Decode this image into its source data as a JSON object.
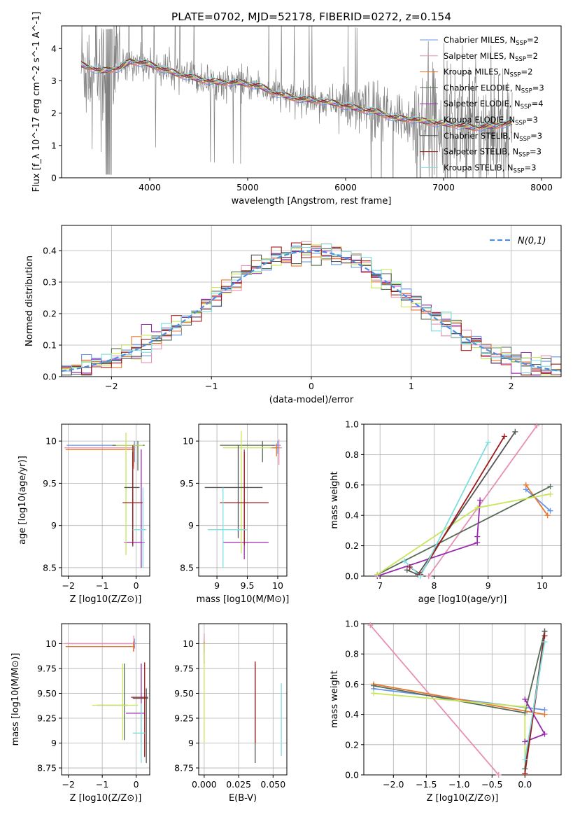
{
  "figure": {
    "title": "PLATE=0702, MJD=52178, FIBERID=0272, z=0.154"
  },
  "models": [
    {
      "name": "Chabrier MILES",
      "nssp": "2",
      "color": "#6495ed"
    },
    {
      "name": "Salpeter MILES",
      "nssp": "2",
      "color": "#e88fb4"
    },
    {
      "name": "Kroupa MILES",
      "nssp": "2",
      "color": "#e8772e"
    },
    {
      "name": "Chabrier ELODIE",
      "nssp": "3",
      "color": "#556b55"
    },
    {
      "name": "Salpeter ELODIE",
      "nssp": "4",
      "color": "#9a2ab0"
    },
    {
      "name": "Kroupa ELODIE",
      "nssp": "3",
      "color": "#c7e55a"
    },
    {
      "name": "Chabrier STELIB",
      "nssp": "3",
      "color": "#555555"
    },
    {
      "name": "Salpeter STELIB",
      "nssp": "3",
      "color": "#a01818"
    },
    {
      "name": "Kroupa STELIB",
      "nssp": "3",
      "color": "#7fdede"
    }
  ],
  "chart_data": [
    {
      "id": "spectrum",
      "type": "line",
      "xlabel": "wavelength [Angstrom, rest frame]",
      "ylabel": "Flux [f_λ 10^-17 erg cm^-2 s^-1 A^-1]",
      "xlim": [
        3100,
        8200
      ],
      "ylim": [
        0,
        4.7
      ],
      "xticks": [
        4000,
        5000,
        6000,
        7000,
        8000
      ],
      "yticks": [
        0,
        1,
        2,
        3,
        4
      ],
      "data_color": "#808080",
      "data_range": [
        3300,
        7700
      ],
      "continuum": {
        "x": [
          3300,
          3500,
          3600,
          3700,
          3800,
          3950,
          4100,
          4300,
          4500,
          4700,
          4900,
          5100,
          5300,
          5500,
          5700,
          5900,
          6100,
          6300,
          6500,
          6700,
          6900,
          7100,
          7300,
          7500,
          7700
        ],
        "y": [
          3.5,
          3.3,
          3.35,
          3.4,
          3.6,
          3.55,
          3.4,
          3.2,
          3.05,
          2.95,
          2.95,
          2.85,
          2.6,
          2.45,
          2.4,
          2.3,
          2.15,
          2.05,
          1.85,
          1.8,
          1.7,
          1.65,
          1.55,
          1.6,
          1.7
        ]
      },
      "grid": false,
      "legend": "top-right"
    },
    {
      "id": "residuals",
      "type": "line",
      "xlabel": "(data-model)/error",
      "ylabel": "Normed distribution",
      "xlim": [
        -2.5,
        2.5
      ],
      "ylim": [
        0,
        0.48
      ],
      "xticks": [
        -2,
        -1,
        0,
        1,
        2
      ],
      "yticks": [
        0.0,
        0.1,
        0.2,
        0.3,
        0.4
      ],
      "bin_width": 0.1,
      "gaussian_label": "N(0,1)",
      "gaussian_color": "#4f8fe0",
      "grid": true,
      "legend": "top-right"
    },
    {
      "id": "age-vs-z",
      "type": "scatter",
      "xlabel": "Z [log10(Z/Z⊙)]",
      "ylabel": "age  [log10(age/yr)]",
      "xlim": [
        -2.2,
        0.4
      ],
      "ylim": [
        8.4,
        10.2
      ],
      "xticks": [
        -2,
        -1,
        0
      ],
      "yticks": [
        8.5,
        9.0,
        9.5,
        10.0
      ],
      "series": [
        {
          "model": 0,
          "x": -0.05,
          "xerr": [
            2.0,
            0.05
          ],
          "y": 9.95,
          "yerr": [
            0.2,
            0.05
          ]
        },
        {
          "model": 1,
          "x": -0.07,
          "xerr": [
            2.05,
            0.05
          ],
          "y": 9.92,
          "yerr": [
            0.25,
            0.05
          ]
        },
        {
          "model": 2,
          "x": -0.08,
          "xerr": [
            2.0,
            0.05
          ],
          "y": 9.9,
          "yerr": [
            0.2,
            0.05
          ]
        },
        {
          "model": 3,
          "x": 0.05,
          "xerr": [
            0.75,
            0.2
          ],
          "y": 9.95,
          "yerr": [
            0.3,
            0.05
          ]
        },
        {
          "model": 4,
          "x": 0.15,
          "xerr": [
            0.5,
            0.1
          ],
          "y": 8.8,
          "yerr": [
            0.3,
            1.1
          ]
        },
        {
          "model": 5,
          "x": -0.3,
          "xerr": [
            0.3,
            0.5
          ],
          "y": 9.95,
          "yerr": [
            1.3,
            0.15
          ]
        },
        {
          "model": 6,
          "x": -0.1,
          "xerr": [
            0.25,
            0.2
          ],
          "y": 9.45,
          "yerr": [
            0.7,
            0.5
          ]
        },
        {
          "model": 7,
          "x": -0.1,
          "xerr": [
            0.3,
            0.3
          ],
          "y": 9.27,
          "yerr": [
            0.5,
            0.6
          ]
        },
        {
          "model": 8,
          "x": 0.2,
          "xerr": [
            0.3,
            0.1
          ],
          "y": 8.95,
          "yerr": [
            0.45,
            0.5
          ]
        }
      ]
    },
    {
      "id": "age-vs-mass",
      "type": "scatter",
      "xlabel": "mass [log10(M/M⊙)]",
      "ylabel": "",
      "xlim": [
        8.7,
        10.15
      ],
      "ylim": [
        8.4,
        10.2
      ],
      "xticks": [
        9.0,
        9.5,
        10.0
      ],
      "yticks": [
        8.5,
        9.0,
        9.5,
        10.0
      ],
      "series": [
        {
          "model": 0,
          "x": 10.0,
          "xerr": [
            0.1,
            0.05
          ],
          "y": 9.95,
          "yerr": [
            0.1,
            0.05
          ]
        },
        {
          "model": 1,
          "x": 10.02,
          "xerr": [
            0.1,
            0.05
          ],
          "y": 9.92,
          "yerr": [
            0.2,
            0.1
          ]
        },
        {
          "model": 2,
          "x": 9.98,
          "xerr": [
            0.1,
            0.05
          ],
          "y": 9.92,
          "yerr": [
            0.1,
            0.05
          ]
        },
        {
          "model": 3,
          "x": 9.75,
          "xerr": [
            0.7,
            0.2
          ],
          "y": 9.95,
          "yerr": [
            0.2,
            0.05
          ]
        },
        {
          "model": 4,
          "x": 9.45,
          "xerr": [
            0.35,
            0.4
          ],
          "y": 8.8,
          "yerr": [
            0.2,
            1.1
          ]
        },
        {
          "model": 5,
          "x": 9.4,
          "xerr": [
            0.3,
            0.5
          ],
          "y": 9.92,
          "yerr": [
            1.25,
            0.2
          ]
        },
        {
          "model": 6,
          "x": 9.35,
          "xerr": [
            0.55,
            0.4
          ],
          "y": 9.45,
          "yerr": [
            0.6,
            0.5
          ]
        },
        {
          "model": 7,
          "x": 9.45,
          "xerr": [
            0.4,
            0.4
          ],
          "y": 9.27,
          "yerr": [
            0.5,
            0.6
          ]
        },
        {
          "model": 8,
          "x": 9.1,
          "xerr": [
            0.25,
            0.4
          ],
          "y": 8.95,
          "yerr": [
            0.45,
            0.5
          ]
        }
      ]
    },
    {
      "id": "weight-vs-age",
      "type": "line",
      "xlabel": "age  [log10(age/yr)]",
      "ylabel": "mass weight",
      "xlim": [
        6.7,
        10.35
      ],
      "ylim": [
        0,
        1
      ],
      "xticks": [
        7,
        8,
        9,
        10
      ],
      "yticks": [
        0.0,
        0.2,
        0.4,
        0.6,
        0.8,
        1.0
      ],
      "series": [
        {
          "model": 0,
          "x": [
            9.7,
            10.15
          ],
          "y": [
            0.57,
            0.43
          ]
        },
        {
          "model": 1,
          "x": [
            7.9,
            9.9
          ],
          "y": [
            0.0,
            0.99
          ]
        },
        {
          "model": 2,
          "x": [
            9.7,
            10.1
          ],
          "y": [
            0.6,
            0.4
          ]
        },
        {
          "model": 3,
          "x": [
            6.95,
            10.15
          ],
          "y": [
            0.01,
            0.59
          ]
        },
        {
          "model": 4,
          "x": [
            6.95,
            8.8,
            8.8,
            8.85
          ],
          "y": [
            0.0,
            0.22,
            0.26,
            0.5
          ]
        },
        {
          "model": 5,
          "x": [
            6.95,
            8.8,
            10.15
          ],
          "y": [
            0.01,
            0.45,
            0.54
          ]
        },
        {
          "model": 6,
          "x": [
            7.5,
            7.7,
            9.5
          ],
          "y": [
            0.04,
            0.01,
            0.95
          ]
        },
        {
          "model": 7,
          "x": [
            7.55,
            7.75,
            9.3
          ],
          "y": [
            0.06,
            0.01,
            0.92
          ]
        },
        {
          "model": 8,
          "x": [
            7.45,
            7.75,
            9.0
          ],
          "y": [
            0.1,
            0.0,
            0.88
          ]
        }
      ]
    },
    {
      "id": "mass-vs-z",
      "type": "scatter",
      "xlabel": "Z [log10(Z/Z⊙)]",
      "ylabel": "mass [log10(M/M⊙)]",
      "xlim": [
        -2.2,
        0.4
      ],
      "ylim": [
        8.68,
        10.2
      ],
      "xticks": [
        -2,
        -1,
        0
      ],
      "yticks": [
        8.75,
        9.0,
        9.25,
        9.5,
        9.75,
        10.0
      ],
      "series": [
        {
          "model": 0,
          "x": -0.05,
          "xerr": [
            2.0,
            0.05
          ],
          "y": 10.0,
          "yerr": [
            0.05,
            0.05
          ]
        },
        {
          "model": 1,
          "x": -0.07,
          "xerr": [
            2.05,
            0.05
          ],
          "y": 10.0,
          "yerr": [
            0.08,
            0.08
          ]
        },
        {
          "model": 2,
          "x": -0.08,
          "xerr": [
            2.0,
            0.05
          ],
          "y": 9.97,
          "yerr": [
            0.05,
            0.05
          ]
        },
        {
          "model": 3,
          "x": -0.35,
          "xerr": [
            0.8,
            0.1
          ],
          "y": 9.38,
          "yerr": [
            0.35,
            0.42
          ]
        },
        {
          "model": 4,
          "x": 0.15,
          "xerr": [
            0.45,
            0.1
          ],
          "y": 9.3,
          "yerr": [
            0.3,
            0.5
          ]
        },
        {
          "model": 5,
          "x": -0.4,
          "xerr": [
            0.9,
            0.45
          ],
          "y": 9.38,
          "yerr": [
            0.35,
            0.42
          ]
        },
        {
          "model": 6,
          "x": 0.3,
          "xerr": [
            0.4,
            0.05
          ],
          "y": 9.45,
          "yerr": [
            0.65,
            0.1
          ]
        },
        {
          "model": 7,
          "x": 0.25,
          "xerr": [
            0.4,
            0.1
          ],
          "y": 9.46,
          "yerr": [
            0.6,
            0.35
          ]
        },
        {
          "model": 8,
          "x": 0.15,
          "xerr": [
            0.25,
            0.1
          ],
          "y": 9.1,
          "yerr": [
            0.3,
            0.3
          ]
        }
      ]
    },
    {
      "id": "mass-vs-ebv",
      "type": "scatter",
      "xlabel": "E(B-V)",
      "ylabel": "",
      "xlim": [
        -0.004,
        0.06
      ],
      "ylim": [
        8.68,
        10.2
      ],
      "xticks": [
        0.0,
        0.025,
        0.05
      ],
      "xticklabels": [
        "0.000",
        "0.025",
        "0.050"
      ],
      "yticks": [
        8.75,
        9.0,
        9.25,
        9.5,
        9.75,
        10.0
      ],
      "series": [
        {
          "model": 0,
          "x": 0.0,
          "y": 10.0,
          "yerr": [
            0.1,
            0.05
          ]
        },
        {
          "model": 1,
          "x": 0.0,
          "y": 10.0,
          "yerr": [
            0.1,
            0.1
          ]
        },
        {
          "model": 2,
          "x": 0.0,
          "y": 9.97,
          "yerr": [
            0.05,
            0.05
          ]
        },
        {
          "model": 4,
          "x": 0.0,
          "y": 9.9,
          "yerr": [
            0.1,
            0.1
          ]
        },
        {
          "model": 5,
          "x": 0.0,
          "y": 9.5,
          "yerr": [
            0.5,
            0.5
          ]
        },
        {
          "model": 6,
          "x": 0.037,
          "y": 9.3,
          "yerr": [
            0.5,
            0.5
          ]
        },
        {
          "model": 7,
          "x": 0.037,
          "y": 9.4,
          "yerr": [
            0.4,
            0.42
          ]
        },
        {
          "model": 8,
          "x": 0.056,
          "y": 9.25,
          "yerr": [
            0.38,
            0.35
          ]
        }
      ]
    },
    {
      "id": "weight-vs-z",
      "type": "line",
      "xlabel": "Z [log10(Z/Z⊙)]",
      "ylabel": "mass weight",
      "xlim": [
        -2.45,
        0.55
      ],
      "ylim": [
        0,
        1
      ],
      "xticks": [
        -2.0,
        -1.5,
        -1.0,
        -0.5,
        0.0
      ],
      "xticklabels": [
        "−2.0",
        "−1.5",
        "−1.0",
        "−0.5",
        "0.0"
      ],
      "yticks": [
        0.0,
        0.2,
        0.4,
        0.6,
        0.8,
        1.0
      ],
      "series": [
        {
          "model": 0,
          "x": [
            -2.3,
            0.3
          ],
          "y": [
            0.57,
            0.43
          ]
        },
        {
          "model": 1,
          "x": [
            -2.35,
            -0.4
          ],
          "y": [
            0.99,
            0.0
          ]
        },
        {
          "model": 2,
          "x": [
            -2.3,
            0.3
          ],
          "y": [
            0.6,
            0.4
          ]
        },
        {
          "model": 3,
          "x": [
            -2.3,
            0.0,
            0.3
          ],
          "y": [
            0.59,
            0.41,
            0.95
          ]
        },
        {
          "model": 4,
          "x": [
            0.0,
            0.3,
            0.0
          ],
          "y": [
            0.22,
            0.27,
            0.5
          ]
        },
        {
          "model": 5,
          "x": [
            -2.3,
            0.0,
            0.0
          ],
          "y": [
            0.54,
            0.45,
            0.01
          ]
        },
        {
          "model": 6,
          "x": [
            0.0,
            0.3
          ],
          "y": [
            0.04,
            0.95
          ]
        },
        {
          "model": 7,
          "x": [
            0.0,
            0.3
          ],
          "y": [
            0.01,
            0.92
          ]
        },
        {
          "model": 8,
          "x": [
            0.0,
            0.3
          ],
          "y": [
            0.1,
            0.88
          ]
        }
      ]
    }
  ]
}
